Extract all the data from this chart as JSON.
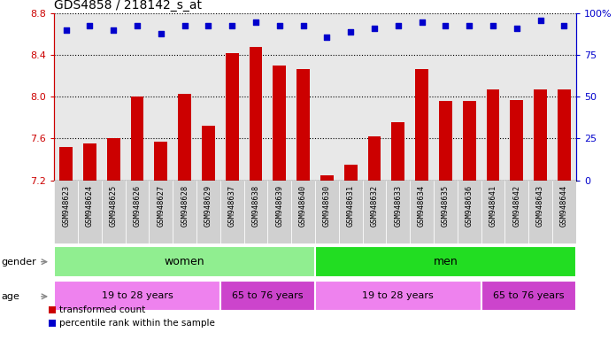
{
  "title": "GDS4858 / 218142_s_at",
  "samples": [
    "GSM948623",
    "GSM948624",
    "GSM948625",
    "GSM948626",
    "GSM948627",
    "GSM948628",
    "GSM948629",
    "GSM948637",
    "GSM948638",
    "GSM948639",
    "GSM948640",
    "GSM948630",
    "GSM948631",
    "GSM948632",
    "GSM948633",
    "GSM948634",
    "GSM948635",
    "GSM948636",
    "GSM948641",
    "GSM948642",
    "GSM948643",
    "GSM948644"
  ],
  "bar_values": [
    7.52,
    7.55,
    7.6,
    8.0,
    7.57,
    8.03,
    7.72,
    8.42,
    8.48,
    8.3,
    8.27,
    7.25,
    7.35,
    7.62,
    7.76,
    8.27,
    7.96,
    7.96,
    8.07,
    7.97,
    8.07,
    8.07
  ],
  "percentile_values": [
    90,
    93,
    90,
    93,
    88,
    93,
    93,
    93,
    95,
    93,
    93,
    86,
    89,
    91,
    93,
    95,
    93,
    93,
    93,
    91,
    96,
    93
  ],
  "ymin": 7.2,
  "ymax": 8.8,
  "yticks": [
    7.2,
    7.6,
    8.0,
    8.4,
    8.8
  ],
  "right_yticks": [
    0,
    25,
    50,
    75,
    100
  ],
  "bar_color": "#cc0000",
  "dot_color": "#0000cc",
  "plot_bg_color": "#e8e8e8",
  "tick_bg_color": "#d0d0d0",
  "gender_women_color": "#90ee90",
  "gender_men_color": "#22dd22",
  "age_young_color": "#ee82ee",
  "age_old_color": "#cc44cc",
  "women_count": 11,
  "men_count": 11,
  "women_young_count": 7,
  "women_old_count": 4,
  "men_young_count": 7,
  "men_old_count": 4,
  "gender_label": "gender",
  "age_label": "age",
  "age_young_label": "19 to 28 years",
  "age_old_label": "65 to 76 years",
  "legend_bar_label": "transformed count",
  "legend_dot_label": "percentile rank within the sample"
}
